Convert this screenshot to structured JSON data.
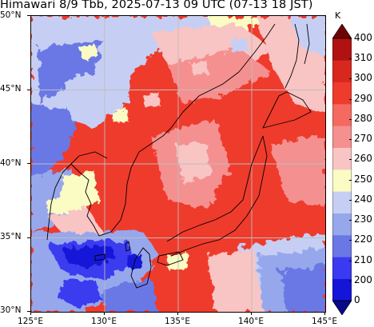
{
  "title": "Himawari 8/9 Tbb, 2025-07-13 09 UTC (07-13 18 JST)",
  "map": {
    "lon_min": 125,
    "lon_max": 145,
    "lat_min": 30,
    "lat_max": 50,
    "lat_ticks": [
      "30°N",
      "35°N",
      "40°N",
      "45°N",
      "50°N"
    ],
    "lon_ticks": [
      "125°E",
      "130°E",
      "135°E",
      "140°E",
      "145°E"
    ],
    "grid": true,
    "base_color": "#ef3b2c",
    "coastline_color": "#000000"
  },
  "colorbar": {
    "unit": "K",
    "labels": [
      "0",
      "200",
      "210",
      "220",
      "230",
      "240",
      "250",
      "260",
      "270",
      "280",
      "290",
      "300",
      "310",
      "400"
    ],
    "colors": [
      "#08088a",
      "#1515d8",
      "#3a3af0",
      "#6a78e6",
      "#97a7ec",
      "#c6cff3",
      "#fbfbc4",
      "#f9c4c4",
      "#f59090",
      "#f46a60",
      "#ef3b2c",
      "#d8281e",
      "#b01212",
      "#6e0505"
    ],
    "extend": "both"
  }
}
